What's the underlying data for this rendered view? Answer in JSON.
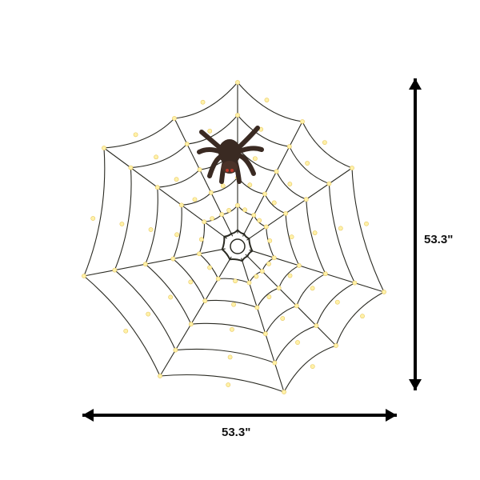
{
  "product": {
    "dimensions": {
      "height_label": "53.3\"",
      "width_label": "53.3\""
    },
    "colors": {
      "web_line": "#2a2a22",
      "lights": "#fff1a8",
      "spider": "#3a2a22",
      "arrow": "#000000"
    }
  }
}
